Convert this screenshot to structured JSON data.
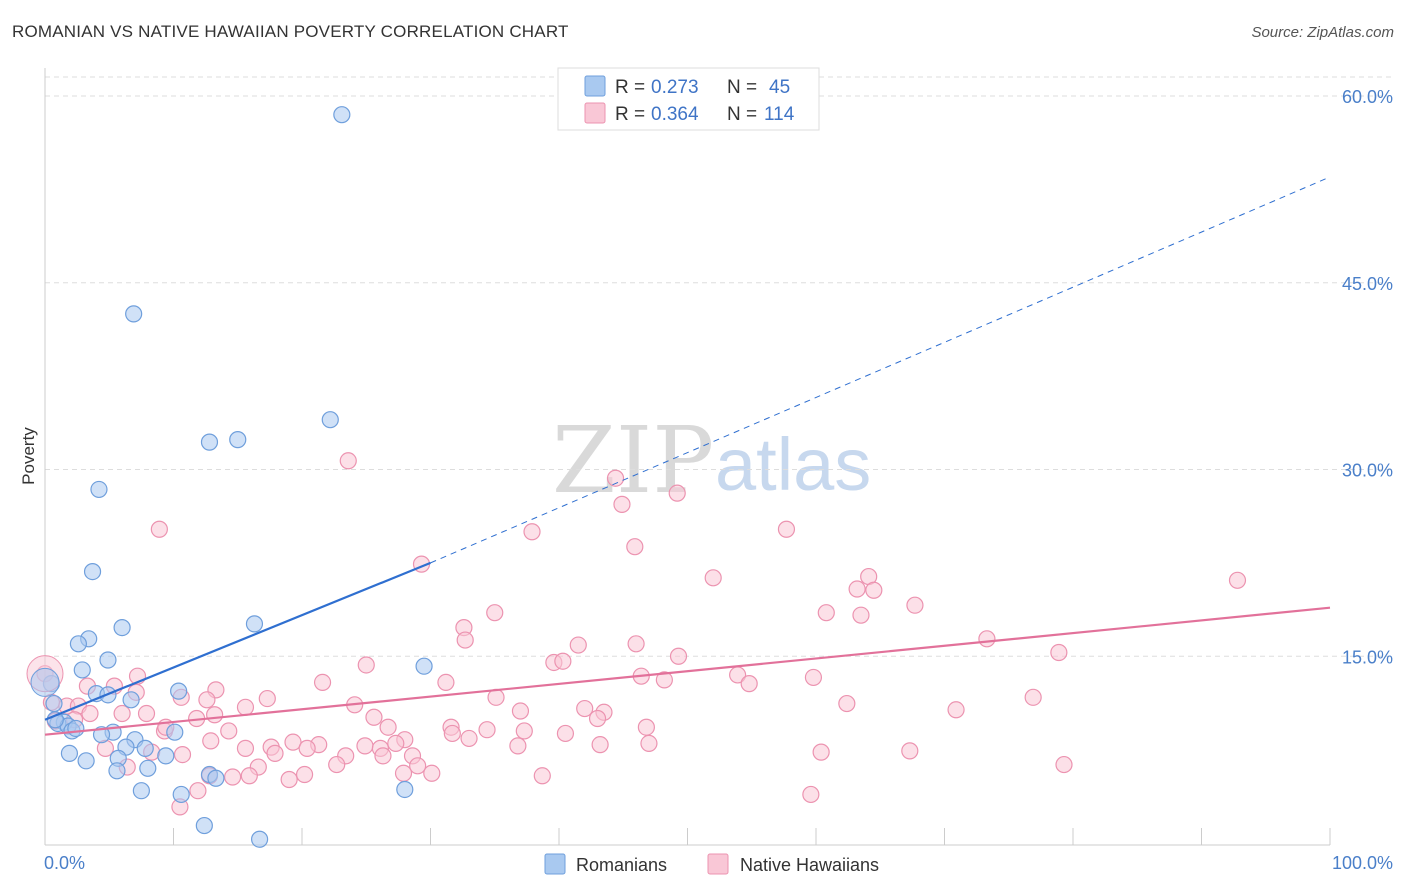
{
  "header": {
    "title": "ROMANIAN VS NATIVE HAWAIIAN POVERTY CORRELATION CHART",
    "source": "Source: ZipAtlas.com"
  },
  "legend": {
    "r_label": "R =",
    "n_label": "N =",
    "rows": [
      {
        "r": "0.273",
        "n": "45",
        "color": "#a9c9f0",
        "stroke": "#6f9fdc"
      },
      {
        "r": "0.364",
        "n": "114",
        "color": "#f9c7d6",
        "stroke": "#ec93b0"
      }
    ]
  },
  "watermark": {
    "zip": "ZIP",
    "atlas": "atlas"
  },
  "colors": {
    "blue_fill": "#a9c9f0",
    "blue_stroke": "#6f9fdc",
    "blue_line": "#2f6fd0",
    "pink_fill": "#f9c7d6",
    "pink_stroke": "#ec93b0",
    "pink_line": "#e2719a",
    "grid": "#dddddd",
    "axis_label": "#4a7fc9"
  },
  "chart_data": {
    "type": "scatter",
    "title": "ROMANIAN VS NATIVE HAWAIIAN POVERTY CORRELATION CHART",
    "xlabel": "",
    "ylabel": "Poverty",
    "xlim": [
      0,
      100
    ],
    "ylim": [
      0,
      60
    ],
    "x_tick_labels": [
      "0.0%",
      "100.0%"
    ],
    "y_ticks": [
      15,
      30,
      45,
      60
    ],
    "y_tick_labels": [
      "15.0%",
      "30.0%",
      "45.0%",
      "60.0%"
    ],
    "grid": true,
    "legend_position": "bottom-center",
    "series": [
      {
        "name": "Romanians",
        "r": 0.273,
        "n": 45,
        "trend": {
          "x0": 0,
          "y0": 9.9,
          "x1": 30,
          "y1": 22.5,
          "x_end_dashed": 100,
          "y_end_dashed": 53.5
        },
        "points": [
          [
            23.1,
            58.5
          ],
          [
            6.9,
            42.5
          ],
          [
            22.2,
            34.0
          ],
          [
            15.0,
            32.4
          ],
          [
            12.8,
            32.2
          ],
          [
            4.2,
            28.4
          ],
          [
            3.7,
            21.8
          ],
          [
            16.3,
            17.6
          ],
          [
            6.0,
            17.3
          ],
          [
            3.4,
            16.4
          ],
          [
            2.6,
            16.0
          ],
          [
            4.9,
            14.7
          ],
          [
            2.9,
            13.9
          ],
          [
            29.5,
            14.2
          ],
          [
            0.5,
            12.8
          ],
          [
            10.4,
            12.2
          ],
          [
            4.0,
            12.0
          ],
          [
            4.9,
            11.9
          ],
          [
            6.7,
            11.5
          ],
          [
            0.7,
            11.2
          ],
          [
            1.5,
            9.7
          ],
          [
            1.0,
            9.6
          ],
          [
            1.8,
            9.4
          ],
          [
            2.1,
            9.0
          ],
          [
            5.3,
            8.9
          ],
          [
            10.1,
            8.9
          ],
          [
            4.4,
            8.7
          ],
          [
            7.0,
            8.3
          ],
          [
            7.8,
            7.6
          ],
          [
            6.3,
            7.7
          ],
          [
            1.9,
            7.2
          ],
          [
            9.4,
            7.0
          ],
          [
            5.7,
            6.8
          ],
          [
            3.2,
            6.6
          ],
          [
            8.0,
            6.0
          ],
          [
            5.6,
            5.8
          ],
          [
            12.8,
            5.5
          ],
          [
            13.3,
            5.2
          ],
          [
            7.5,
            4.2
          ],
          [
            10.6,
            3.9
          ],
          [
            28.0,
            4.3
          ],
          [
            12.4,
            1.4
          ],
          [
            16.7,
            0.3
          ],
          [
            0.8,
            9.9
          ],
          [
            2.4,
            9.2
          ]
        ]
      },
      {
        "name": "Native Hawaiians",
        "r": 0.364,
        "n": 114,
        "trend": {
          "x0": 0,
          "y0": 8.7,
          "x1": 100,
          "y1": 18.9
        },
        "points": [
          [
            23.6,
            30.7
          ],
          [
            44.4,
            29.3
          ],
          [
            49.2,
            28.1
          ],
          [
            44.9,
            27.2
          ],
          [
            8.9,
            25.2
          ],
          [
            37.9,
            25.0
          ],
          [
            57.7,
            25.2
          ],
          [
            45.9,
            23.8
          ],
          [
            29.3,
            22.4
          ],
          [
            52.0,
            21.3
          ],
          [
            64.1,
            21.4
          ],
          [
            92.8,
            21.1
          ],
          [
            63.2,
            20.4
          ],
          [
            64.5,
            20.3
          ],
          [
            67.7,
            19.1
          ],
          [
            60.8,
            18.5
          ],
          [
            63.5,
            18.3
          ],
          [
            35.0,
            18.5
          ],
          [
            32.6,
            17.3
          ],
          [
            32.7,
            16.3
          ],
          [
            41.5,
            15.9
          ],
          [
            46.0,
            16.0
          ],
          [
            73.3,
            16.4
          ],
          [
            49.3,
            15.0
          ],
          [
            78.9,
            15.3
          ],
          [
            25.0,
            14.3
          ],
          [
            39.6,
            14.5
          ],
          [
            40.3,
            14.6
          ],
          [
            7.2,
            13.4
          ],
          [
            46.4,
            13.4
          ],
          [
            48.2,
            13.1
          ],
          [
            53.9,
            13.5
          ],
          [
            54.8,
            12.8
          ],
          [
            59.8,
            13.3
          ],
          [
            21.6,
            12.9
          ],
          [
            3.3,
            12.6
          ],
          [
            5.4,
            12.6
          ],
          [
            31.2,
            12.9
          ],
          [
            13.3,
            12.3
          ],
          [
            7.1,
            12.1
          ],
          [
            10.6,
            11.7
          ],
          [
            12.6,
            11.5
          ],
          [
            17.3,
            11.6
          ],
          [
            35.1,
            11.7
          ],
          [
            76.9,
            11.7
          ],
          [
            0.5,
            11.3
          ],
          [
            1.7,
            11.0
          ],
          [
            2.6,
            11.0
          ],
          [
            6.0,
            10.4
          ],
          [
            3.5,
            10.4
          ],
          [
            7.9,
            10.4
          ],
          [
            13.2,
            10.3
          ],
          [
            15.6,
            10.9
          ],
          [
            24.1,
            11.1
          ],
          [
            37.0,
            10.6
          ],
          [
            42.0,
            10.8
          ],
          [
            43.5,
            10.5
          ],
          [
            62.4,
            11.2
          ],
          [
            70.9,
            10.7
          ],
          [
            25.6,
            10.1
          ],
          [
            43.0,
            10.0
          ],
          [
            2.3,
            9.9
          ],
          [
            11.8,
            10.0
          ],
          [
            0.8,
            9.8
          ],
          [
            26.7,
            9.3
          ],
          [
            31.6,
            9.3
          ],
          [
            34.4,
            9.1
          ],
          [
            37.3,
            9.0
          ],
          [
            40.5,
            8.8
          ],
          [
            46.8,
            9.3
          ],
          [
            14.3,
            9.0
          ],
          [
            9.3,
            9.0
          ],
          [
            31.7,
            8.8
          ],
          [
            33.0,
            8.4
          ],
          [
            4.7,
            7.6
          ],
          [
            12.9,
            8.2
          ],
          [
            19.3,
            8.1
          ],
          [
            21.3,
            7.9
          ],
          [
            24.9,
            7.8
          ],
          [
            28.0,
            8.3
          ],
          [
            36.8,
            7.8
          ],
          [
            43.2,
            7.9
          ],
          [
            17.6,
            7.7
          ],
          [
            15.6,
            7.6
          ],
          [
            20.4,
            7.6
          ],
          [
            26.1,
            7.6
          ],
          [
            10.7,
            7.1
          ],
          [
            17.9,
            7.2
          ],
          [
            23.4,
            7.0
          ],
          [
            26.3,
            7.0
          ],
          [
            28.6,
            7.0
          ],
          [
            60.4,
            7.3
          ],
          [
            67.3,
            7.4
          ],
          [
            8.3,
            7.3
          ],
          [
            22.7,
            6.3
          ],
          [
            29.0,
            6.2
          ],
          [
            16.6,
            6.1
          ],
          [
            6.4,
            6.1
          ],
          [
            15.9,
            5.4
          ],
          [
            19.0,
            5.1
          ],
          [
            20.2,
            5.5
          ],
          [
            27.9,
            5.6
          ],
          [
            30.1,
            5.6
          ],
          [
            12.8,
            5.4
          ],
          [
            14.6,
            5.3
          ],
          [
            38.7,
            5.4
          ],
          [
            79.3,
            6.3
          ],
          [
            59.6,
            3.9
          ],
          [
            11.9,
            4.2
          ],
          [
            10.5,
            2.9
          ],
          [
            0.0,
            13.6
          ],
          [
            9.4,
            9.3
          ],
          [
            27.3,
            8.0
          ],
          [
            47.0,
            8.0
          ]
        ]
      }
    ]
  },
  "bottom_legend": [
    {
      "label": "Romanians"
    },
    {
      "label": "Native Hawaiians"
    }
  ]
}
